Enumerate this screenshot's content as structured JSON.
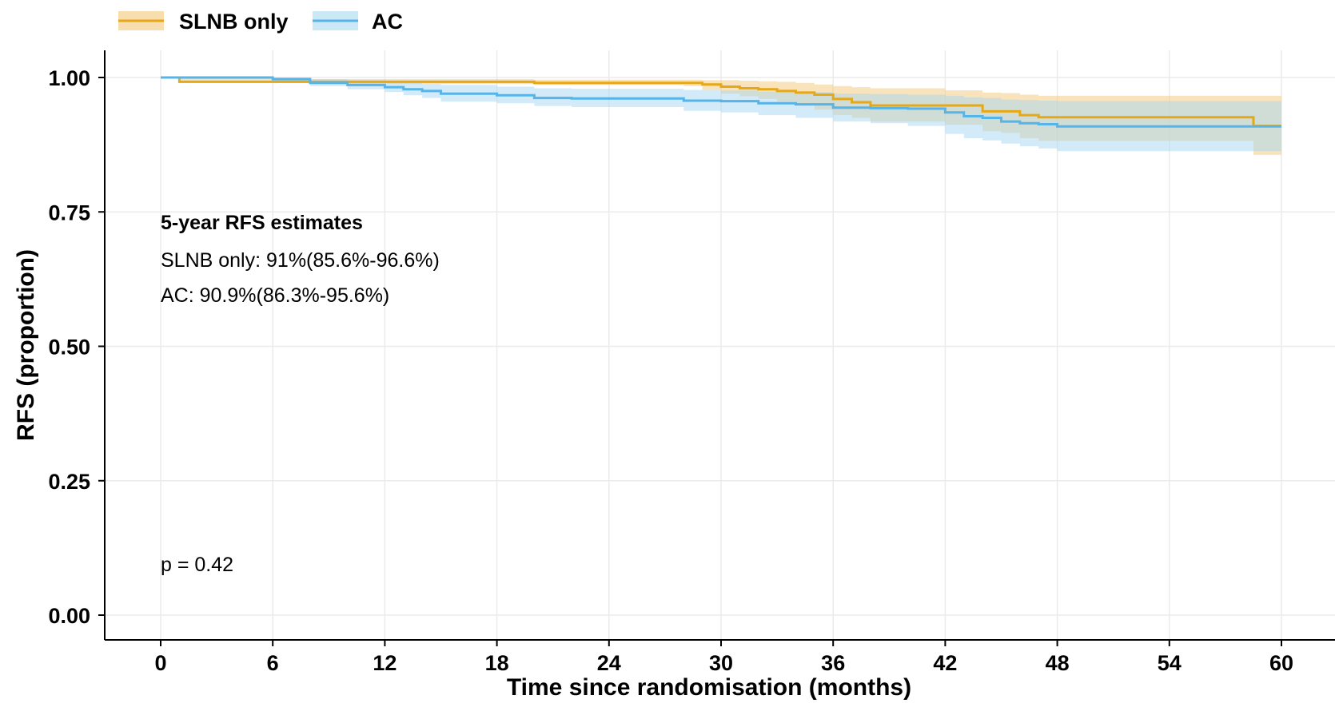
{
  "chart_data": {
    "type": "line",
    "step": true,
    "xlabel": "Time since randomisation (months)",
    "ylabel": "RFS (proportion)",
    "xlim": [
      0,
      60
    ],
    "ylim": [
      0,
      1
    ],
    "x_ticks": [
      0,
      6,
      12,
      18,
      24,
      30,
      36,
      42,
      48,
      54,
      60
    ],
    "y_ticks": [
      0,
      0.25,
      0.5,
      0.75,
      1
    ],
    "x_tick_labels": [
      "0",
      "6",
      "12",
      "18",
      "24",
      "30",
      "36",
      "42",
      "48",
      "54",
      "60"
    ],
    "y_tick_labels": [
      "0.00",
      "0.25",
      "0.50",
      "0.75",
      "1.00"
    ],
    "grid": true,
    "legend": {
      "placement": "top-left"
    },
    "series": [
      {
        "name": "SLNB only",
        "color": "#E6A817",
        "band_color": "#F3C77A",
        "x": [
          0,
          1,
          6,
          8,
          20,
          28,
          29,
          30,
          31,
          32,
          33,
          34,
          35,
          36,
          37,
          38,
          42,
          44,
          45,
          46,
          47,
          58.5,
          60
        ],
        "y": [
          1.0,
          0.992,
          0.992,
          0.992,
          0.99,
          0.99,
          0.987,
          0.983,
          0.98,
          0.978,
          0.975,
          0.972,
          0.968,
          0.96,
          0.954,
          0.948,
          0.948,
          0.937,
          0.937,
          0.93,
          0.926,
          0.91,
          0.91
        ],
        "lower": [
          1.0,
          0.99,
          0.99,
          0.988,
          0.986,
          0.984,
          0.977,
          0.97,
          0.965,
          0.96,
          0.955,
          0.95,
          0.94,
          0.93,
          0.925,
          0.918,
          0.912,
          0.9,
          0.897,
          0.887,
          0.882,
          0.856,
          0.856
        ],
        "upper": [
          1.0,
          0.998,
          0.998,
          0.997,
          0.996,
          0.996,
          0.995,
          0.995,
          0.994,
          0.993,
          0.992,
          0.99,
          0.987,
          0.984,
          0.982,
          0.98,
          0.976,
          0.972,
          0.971,
          0.968,
          0.966,
          0.966,
          0.966
        ]
      },
      {
        "name": "AC",
        "color": "#56B4E9",
        "band_color": "#A8D8F2",
        "x": [
          0,
          6,
          8,
          10,
          12,
          13,
          14,
          15,
          18,
          20,
          22,
          28,
          30,
          32,
          34,
          36,
          38,
          40,
          42,
          43,
          44,
          45,
          46,
          47,
          48,
          60
        ],
        "y": [
          1.0,
          0.997,
          0.99,
          0.986,
          0.982,
          0.978,
          0.975,
          0.97,
          0.967,
          0.962,
          0.961,
          0.957,
          0.956,
          0.952,
          0.95,
          0.944,
          0.943,
          0.942,
          0.935,
          0.928,
          0.925,
          0.918,
          0.915,
          0.913,
          0.909,
          0.909
        ],
        "lower": [
          1.0,
          0.993,
          0.984,
          0.978,
          0.973,
          0.967,
          0.962,
          0.955,
          0.952,
          0.947,
          0.945,
          0.938,
          0.935,
          0.93,
          0.925,
          0.918,
          0.915,
          0.91,
          0.895,
          0.887,
          0.883,
          0.877,
          0.872,
          0.868,
          0.863,
          0.863
        ],
        "upper": [
          1.0,
          1.0,
          0.997,
          0.995,
          0.992,
          0.99,
          0.988,
          0.986,
          0.983,
          0.98,
          0.979,
          0.977,
          0.976,
          0.974,
          0.973,
          0.97,
          0.969,
          0.968,
          0.966,
          0.963,
          0.962,
          0.959,
          0.958,
          0.957,
          0.956,
          0.956
        ]
      }
    ],
    "annotations": {
      "estimates_title": "5-year RFS estimates",
      "estimates_line1": "SLNB only: 91%(85.6%-96.6%)",
      "estimates_line2": "AC: 90.9%(86.3%-95.6%)",
      "pvalue": "p = 0.42"
    }
  }
}
